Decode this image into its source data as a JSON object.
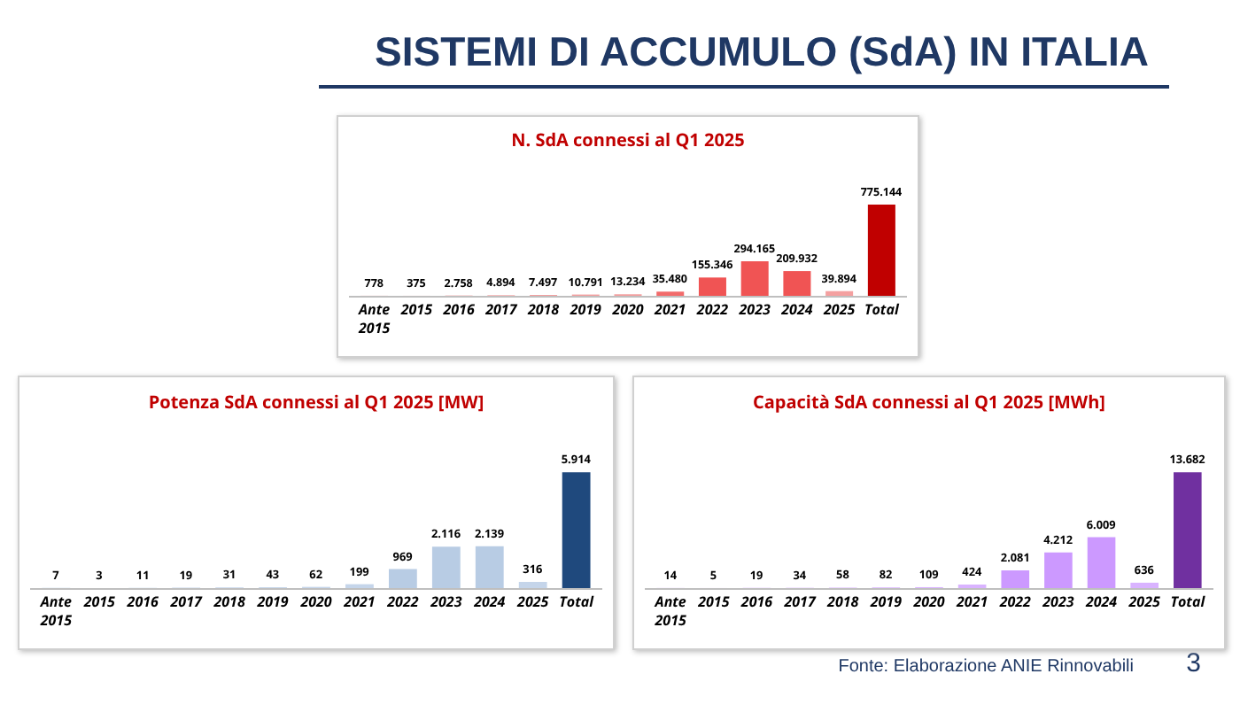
{
  "chart_data": [
    {
      "type": "other",
      "title": "SISTEMI DI ACCUMULO (SdA) IN ITALIA",
      "annotations": [
        "Fonte: Elaborazione ANIE Rinnovabili",
        "3"
      ]
    },
    {
      "type": "bar",
      "title": "N. SdA connessi al Q1 2025",
      "categories": [
        "Ante 2015",
        "2015",
        "2016",
        "2017",
        "2018",
        "2019",
        "2020",
        "2021",
        "2022",
        "2023",
        "2024",
        "2025",
        "Total"
      ],
      "values": [
        778,
        375,
        2758,
        4894,
        7497,
        10791,
        13234,
        35480,
        155346,
        294165,
        209932,
        39894,
        775144
      ],
      "value_labels": [
        "778",
        "375",
        "2.758",
        "4.894",
        "7.497",
        "10.791",
        "13.234",
        "35.480",
        "155.346",
        "294.165",
        "209.932",
        "39.894",
        "775.144"
      ],
      "colors": [
        "#f4a0a0",
        "#f4a0a0",
        "#f4a0a0",
        "#f4a0a0",
        "#f4a0a0",
        "#f4a0a0",
        "#f4a0a0",
        "#f26b6b",
        "#f05454",
        "#f05454",
        "#f05454",
        "#f4a0a0",
        "#c00000"
      ]
    },
    {
      "type": "bar",
      "title": "Potenza SdA connessi al Q1 2025 [MW]",
      "categories": [
        "Ante 2015",
        "2015",
        "2016",
        "2017",
        "2018",
        "2019",
        "2020",
        "2021",
        "2022",
        "2023",
        "2024",
        "2025",
        "Total"
      ],
      "values": [
        7,
        3,
        11,
        19,
        31,
        43,
        62,
        199,
        969,
        2116,
        2139,
        316,
        5914
      ],
      "value_labels": [
        "7",
        "3",
        "11",
        "19",
        "31",
        "43",
        "62",
        "199",
        "969",
        "2.116",
        "2.139",
        "316",
        "5.914"
      ],
      "colors": [
        "#c5d5ea",
        "#c5d5ea",
        "#c5d5ea",
        "#c5d5ea",
        "#c5d5ea",
        "#c5d5ea",
        "#c5d5ea",
        "#c5d5ea",
        "#b8cce4",
        "#b8cce4",
        "#b8cce4",
        "#c5d5ea",
        "#1f497d"
      ]
    },
    {
      "type": "bar",
      "title": "Capacità SdA connessi al Q1 2025 [MWh]",
      "categories": [
        "Ante 2015",
        "2015",
        "2016",
        "2017",
        "2018",
        "2019",
        "2020",
        "2021",
        "2022",
        "2023",
        "2024",
        "2025",
        "Total"
      ],
      "values": [
        14,
        5,
        19,
        34,
        58,
        82,
        109,
        424,
        2081,
        4212,
        6009,
        636,
        13682
      ],
      "value_labels": [
        "14",
        "5",
        "19",
        "34",
        "58",
        "82",
        "109",
        "424",
        "2.081",
        "4.212",
        "6.009",
        "636",
        "13.682"
      ],
      "colors": [
        "#d9b3ff",
        "#d9b3ff",
        "#d9b3ff",
        "#d9b3ff",
        "#d9b3ff",
        "#d9b3ff",
        "#d9b3ff",
        "#d9b3ff",
        "#cc99ff",
        "#cc99ff",
        "#cc99ff",
        "#d9b3ff",
        "#7030a0"
      ]
    }
  ]
}
